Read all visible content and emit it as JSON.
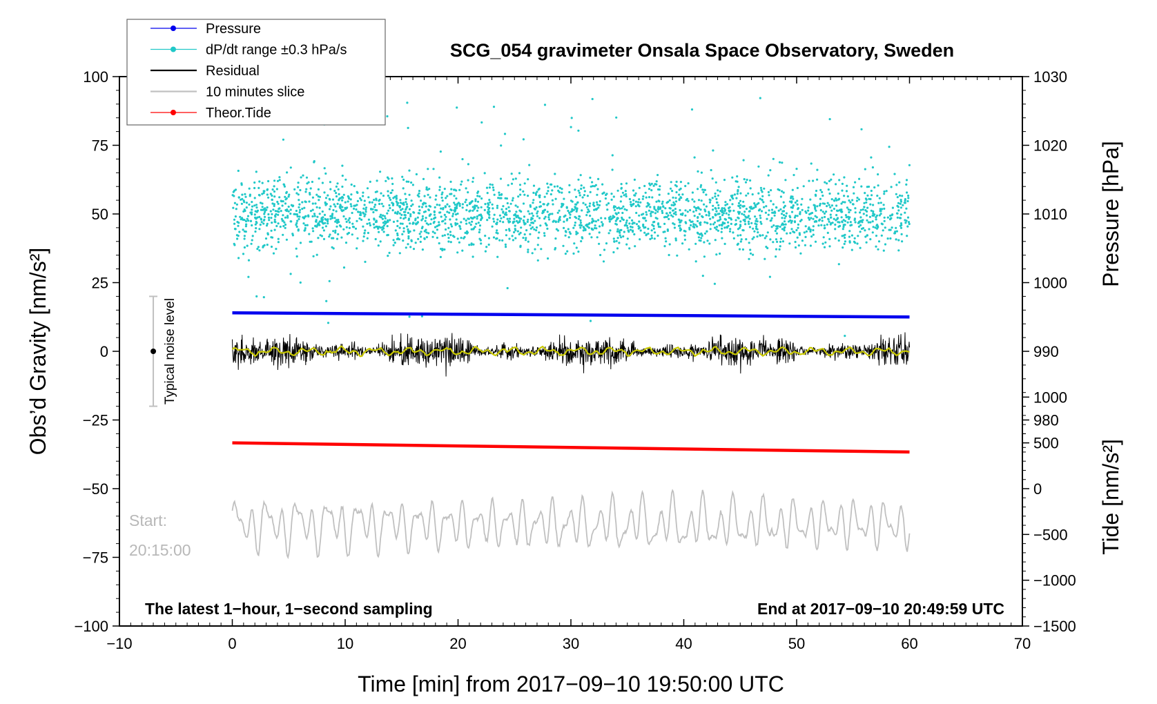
{
  "chart_data": {
    "type": "line",
    "title": "SCG_054 gravimeter Onsala Space Observatory, Sweden",
    "xlabel": "Time [min] from 2017−09−10 19:50:00 UTC",
    "ylabel": "Obs’d Gravity [nm/s²]",
    "ylabel_right_top": "Pressure [hPa]",
    "ylabel_right_bottom": "Tide [nm/s²]",
    "xlim": [
      -10,
      70
    ],
    "ylim": [
      -100,
      100
    ],
    "pressure_axis_range": [
      970,
      1030
    ],
    "tide_axis_range": [
      -1500,
      1000
    ],
    "x_ticks": [
      -10,
      0,
      10,
      20,
      30,
      40,
      50,
      60,
      70
    ],
    "x_tick_labels": [
      "−10",
      "0",
      "10",
      "20",
      "30",
      "40",
      "50",
      "60",
      "70"
    ],
    "y_ticks": [
      -100,
      -75,
      -50,
      -25,
      0,
      25,
      50,
      75,
      100
    ],
    "y_tick_labels": [
      "−100",
      "−75",
      "−50",
      "−25",
      "0",
      "25",
      "50",
      "75",
      "100"
    ],
    "pressure_ticks": [
      980,
      990,
      1000,
      1010,
      1020,
      1030
    ],
    "pressure_tick_labels": [
      "980",
      "990",
      "1000",
      "1010",
      "1020",
      "1030"
    ],
    "tide_ticks": [
      -1500,
      -1000,
      -500,
      0,
      500,
      1000
    ],
    "tide_tick_labels": [
      "−1500",
      "−1000",
      "−500",
      "0",
      "500",
      "1000"
    ],
    "legend": {
      "position": "top-left",
      "entries": [
        "Pressure",
        "dP/dt range ±0.3 hPa/s",
        "Residual",
        "10 minutes slice",
        "Theor.Tide"
      ]
    },
    "colors": {
      "pressure": "#0000ee",
      "dpdt": "#20c8c8",
      "residual": "#000000",
      "residual_smooth": "#c8c800",
      "slice": "#c0c0c0",
      "tide": "#ff0000",
      "start_text": "#b8b8b8",
      "noise_bar": "#c0c0c0"
    },
    "series": [
      {
        "name": "Pressure",
        "axis": "pressure_hPa",
        "x": [
          0,
          60
        ],
        "values": [
          995.6,
          995.0
        ]
      },
      {
        "name": "dP/dt range ±0.3 hPa/s",
        "axis": "gravity",
        "x_range": [
          0,
          60
        ],
        "center": 50,
        "spread": 15,
        "style": "scatter"
      },
      {
        "name": "Residual",
        "axis": "gravity",
        "x_range": [
          0,
          60
        ],
        "center": 0,
        "amplitude": 8,
        "min": -19,
        "max": 18,
        "smoothed_center": 0
      },
      {
        "name": "10 minutes slice",
        "axis": "gravity",
        "x_range": [
          0,
          60
        ],
        "center": -63,
        "min": -81,
        "max": -45
      },
      {
        "name": "Theor.Tide",
        "axis": "tide_nm_s2",
        "x": [
          0,
          60
        ],
        "values": [
          500,
          400
        ]
      }
    ],
    "noise_level": {
      "label": "Typical noise level",
      "x": -7,
      "center": 0,
      "range": [
        -20,
        20
      ]
    },
    "annotations": {
      "start_label": "Start:",
      "start_time": "20:15:00",
      "left_note": "The latest 1−hour, 1−second sampling",
      "right_note": "End at 2017−09−10 20:49:59 UTC"
    }
  }
}
